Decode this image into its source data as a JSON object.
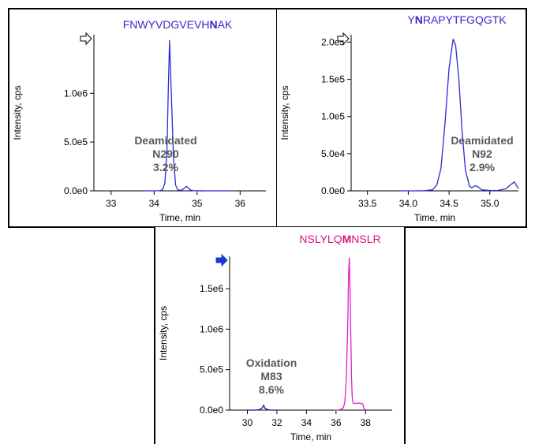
{
  "chart_data": [
    {
      "type": "line",
      "title_parts": [
        {
          "text": "FNWYVDGVEVH",
          "bold": false
        },
        {
          "text": "N",
          "bold": true
        },
        {
          "text": "AK",
          "bold": false
        }
      ],
      "title_color": "#3f25c8",
      "xlabel": "Time, min",
      "ylabel": "Intensity, cps",
      "xlim": [
        32.6,
        36.6
      ],
      "ylim": [
        0,
        1600000
      ],
      "xticks": [
        33,
        34,
        35,
        36
      ],
      "xtick_labels": [
        "33",
        "34",
        "35",
        "36"
      ],
      "yticks": [
        0,
        500000,
        1000000
      ],
      "ytick_labels": [
        "0.0e0",
        "5.0e5",
        "1.0e6"
      ],
      "annotation": [
        "Deamidated",
        "N290",
        "3.2%"
      ],
      "marker": "outline-arrow",
      "series": [
        {
          "color": "#2a2ad8",
          "x": [
            33.8,
            34.0,
            34.1,
            34.15,
            34.2,
            34.25,
            34.3,
            34.33,
            34.36,
            34.4,
            34.45,
            34.5,
            34.55,
            34.6,
            34.65,
            34.7,
            34.75,
            34.8,
            34.85,
            34.9,
            35.0,
            35.2,
            35.5,
            35.8
          ],
          "y": [
            0,
            0,
            1000,
            3000,
            15000,
            80000,
            420000,
            1050000,
            1540000,
            1000000,
            350000,
            60000,
            12000,
            5000,
            8000,
            28000,
            46000,
            28000,
            8000,
            2000,
            500,
            0,
            0,
            0
          ]
        }
      ]
    },
    {
      "type": "line",
      "title_parts": [
        {
          "text": "Y",
          "bold": false
        },
        {
          "text": "N",
          "bold": true
        },
        {
          "text": "RAPYTFGQGTK",
          "bold": false
        }
      ],
      "title_color": "#3f25c8",
      "xlabel": "Time, min",
      "ylabel": "Intensity, cps",
      "xlim": [
        33.3,
        35.35
      ],
      "ylim": [
        0,
        210000
      ],
      "xticks": [
        33.5,
        34.0,
        34.5,
        35.0
      ],
      "xtick_labels": [
        "33.5",
        "34.0",
        "34.5",
        "35.0"
      ],
      "yticks": [
        0,
        50000,
        100000,
        150000,
        200000
      ],
      "ytick_labels": [
        "0.0e0",
        "5.0e4",
        "1.0e5",
        "1.5e5",
        "2.0e5"
      ],
      "annotation": [
        "Deamidated",
        "N92",
        "2.9%"
      ],
      "marker": "outline-arrow",
      "series": [
        {
          "color": "#2a2ad8",
          "x": [
            33.9,
            34.1,
            34.2,
            34.3,
            34.35,
            34.4,
            34.45,
            34.5,
            34.55,
            34.58,
            34.62,
            34.66,
            34.7,
            34.75,
            34.78,
            34.82,
            34.86,
            34.9,
            35.0,
            35.1,
            35.2,
            35.25,
            35.3,
            35.35
          ],
          "y": [
            0,
            0,
            200,
            1500,
            8000,
            30000,
            90000,
            165000,
            204000,
            196000,
            150000,
            80000,
            28000,
            6000,
            4000,
            7000,
            5000,
            1500,
            300,
            500,
            3000,
            8000,
            12000,
            3000
          ]
        }
      ]
    },
    {
      "type": "line",
      "title_parts": [
        {
          "text": "NSLYLQ",
          "bold": false
        },
        {
          "text": "M",
          "bold": true
        },
        {
          "text": "NSLR",
          "bold": false
        }
      ],
      "title_color": "#d5157f",
      "xlabel": "Time, min",
      "ylabel": "Intensity, cps",
      "xlim": [
        28.8,
        39.8
      ],
      "ylim": [
        0,
        1900000
      ],
      "xticks": [
        30,
        32,
        34,
        36,
        38
      ],
      "xtick_labels": [
        "30",
        "32",
        "34",
        "36",
        "38"
      ],
      "yticks": [
        0,
        500000,
        1000000,
        1500000
      ],
      "ytick_labels": [
        "0.0e0",
        "5.0e5",
        "1.0e6",
        "1.5e6"
      ],
      "annotation": [
        "Oxidation",
        "M83",
        "8.6%"
      ],
      "marker": "filled-arrow",
      "series": [
        {
          "color": "#1818b0",
          "x": [
            30.0,
            30.5,
            30.8,
            31.0,
            31.1,
            31.2,
            31.4,
            31.6,
            32.0
          ],
          "y": [
            0,
            0,
            5000,
            25000,
            60000,
            20000,
            5000,
            0,
            0
          ]
        },
        {
          "color": "#e020c8",
          "x": [
            35.9,
            36.1,
            36.3,
            36.5,
            36.6,
            36.7,
            36.8,
            36.85,
            36.9,
            36.95,
            37.0,
            37.05,
            37.1,
            37.15,
            37.2,
            37.3,
            37.4,
            37.5,
            37.6,
            37.7,
            37.8,
            37.9,
            38.0
          ],
          "y": [
            0,
            0,
            8000,
            30000,
            100000,
            400000,
            1100000,
            1700000,
            1880000,
            1500000,
            900000,
            400000,
            150000,
            90000,
            80000,
            85000,
            80000,
            90000,
            85000,
            80000,
            80000,
            20000,
            0
          ]
        }
      ]
    }
  ]
}
